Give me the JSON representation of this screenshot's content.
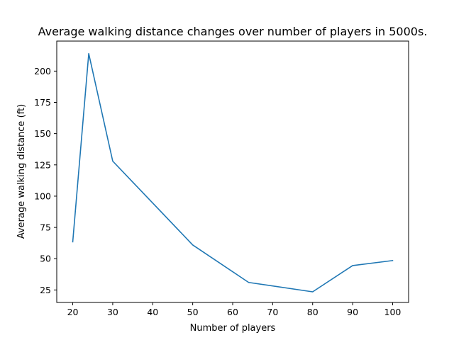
{
  "chart_data": {
    "type": "line",
    "title": "Average walking distance changes over number of players in 5000s.",
    "xlabel": "Number of players",
    "ylabel": "Average walking distance (ft)",
    "xlim": [
      16,
      104
    ],
    "ylim": [
      15,
      224
    ],
    "xticks": [
      20,
      30,
      40,
      50,
      60,
      70,
      80,
      90,
      100
    ],
    "yticks": [
      25,
      50,
      75,
      100,
      125,
      150,
      175,
      200
    ],
    "grid": false,
    "series": [
      {
        "color": "#1f77b4",
        "x": [
          20,
          24,
          30,
          50,
          64,
          80,
          90,
          100
        ],
        "y": [
          63.5,
          214,
          128,
          61,
          31,
          23.5,
          44.5,
          48.5
        ]
      }
    ]
  }
}
